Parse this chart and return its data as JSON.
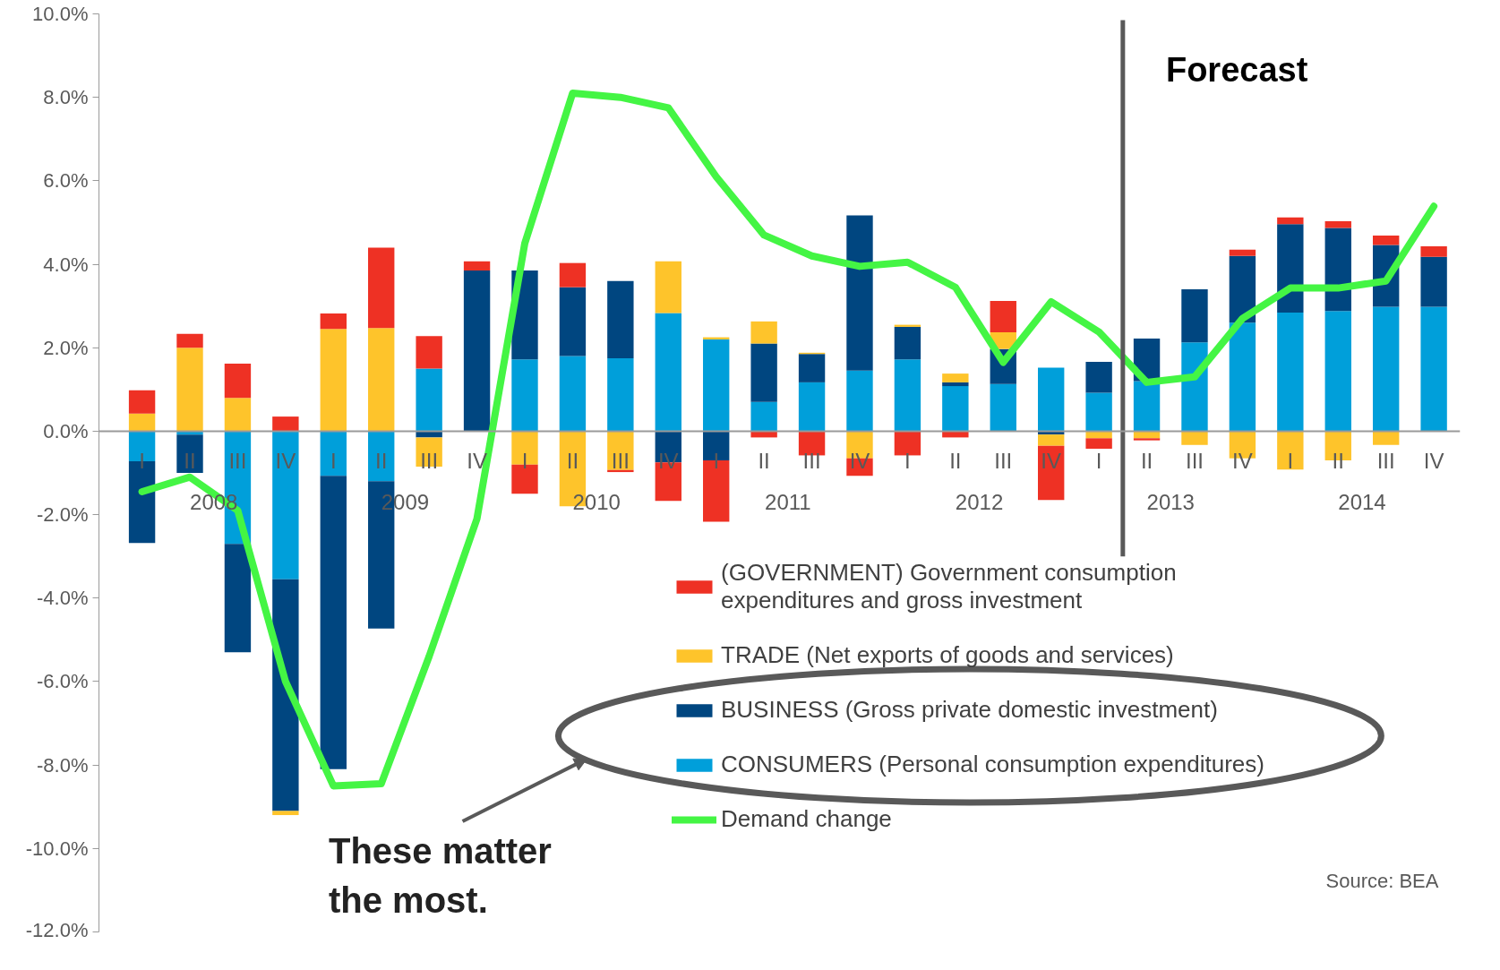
{
  "chart_data": {
    "type": "bar",
    "stacked": true,
    "categories": [
      "I",
      "II",
      "III",
      "IV",
      "I",
      "II",
      "III",
      "IV",
      "I",
      "II",
      "III",
      "IV",
      "I",
      "II",
      "III",
      "IV",
      "I",
      "II",
      "III",
      "IV",
      "I",
      "II",
      "III",
      "IV",
      "I",
      "II",
      "III",
      "IV"
    ],
    "series": [
      {
        "name": "CONSUMERS (Personal consumption expenditures)",
        "color": "#009fda",
        "values": [
          -0.72,
          -0.08,
          -2.7,
          -3.55,
          -1.07,
          -1.2,
          1.5,
          null,
          1.72,
          1.8,
          1.75,
          2.83,
          2.2,
          0.7,
          1.17,
          1.45,
          1.72,
          1.08,
          1.13,
          1.52,
          0.92,
          1.2,
          2.13,
          2.6,
          2.84,
          2.88,
          2.98,
          2.98
        ]
      },
      {
        "name": "BUSINESS (Gross private domestic investment)",
        "color": "#004680",
        "values": [
          -1.96,
          -0.92,
          -2.6,
          -5.55,
          -7.03,
          -3.53,
          -0.15,
          3.85,
          2.13,
          1.65,
          1.85,
          -0.75,
          -0.7,
          1.4,
          0.68,
          3.72,
          0.78,
          0.09,
          0.84,
          -0.08,
          0.74,
          1.02,
          1.27,
          1.6,
          2.12,
          1.99,
          1.48,
          1.2
        ]
      },
      {
        "name": "TRADE (Net exports of goods and services)",
        "color": "#fec42b",
        "values": [
          0.42,
          2.0,
          0.8,
          -0.1,
          2.45,
          2.47,
          -0.7,
          null,
          -0.8,
          -1.8,
          -0.93,
          1.24,
          0.05,
          0.53,
          0.03,
          -0.65,
          0.05,
          0.21,
          0.4,
          -0.27,
          -0.17,
          -0.17,
          -0.33,
          -0.65,
          -0.92,
          -0.7,
          -0.33,
          null
        ]
      },
      {
        "name": "(GOVERNMENT) Government consumption\nexpenditures and gross investment",
        "color": "#ee3124",
        "values": [
          0.56,
          0.33,
          0.82,
          0.35,
          0.37,
          1.93,
          0.78,
          0.22,
          -0.7,
          0.58,
          -0.05,
          -0.92,
          -1.47,
          -0.15,
          -0.58,
          -0.42,
          -0.58,
          -0.15,
          0.75,
          -1.3,
          -0.25,
          -0.05,
          null,
          0.15,
          0.16,
          0.16,
          0.23,
          0.25
        ]
      },
      {
        "name": "Demand change",
        "type": "line",
        "color": "#44f544",
        "values": [
          -1.45,
          -1.1,
          -1.9,
          -6.0,
          -8.5,
          -8.45,
          -5.4,
          -2.1,
          4.5,
          8.1,
          8.0,
          7.75,
          6.1,
          4.7,
          4.2,
          3.95,
          4.05,
          3.45,
          1.65,
          3.1,
          2.38,
          1.17,
          1.3,
          2.7,
          3.43,
          3.43,
          3.6,
          5.39
        ]
      }
    ],
    "ylim": [
      -12,
      10
    ],
    "yticks": [
      {
        "value": -12,
        "label": "-12.0%"
      },
      {
        "value": -10,
        "label": "-10.0%"
      },
      {
        "value": -8,
        "label": "-8.0%"
      },
      {
        "value": -6,
        "label": "-6.0%"
      },
      {
        "value": -4,
        "label": "-4.0%"
      },
      {
        "value": -2,
        "label": "-2.0%"
      },
      {
        "value": 0,
        "label": "0.0%"
      },
      {
        "value": 2,
        "label": "2.0%"
      },
      {
        "value": 4,
        "label": "4.0%"
      },
      {
        "value": 6,
        "label": "6.0%"
      },
      {
        "value": 8,
        "label": "8.0%"
      },
      {
        "value": 10,
        "label": "10.0%"
      }
    ],
    "annotations": [
      "2008",
      "2009",
      "2010",
      "2011",
      "2012",
      "2013",
      "2014",
      "Forecast",
      "These matter the most.",
      "Source: BEA"
    ],
    "legend": "bottom right",
    "grid": false,
    "marker": "none",
    "line_style": "solid"
  }
}
